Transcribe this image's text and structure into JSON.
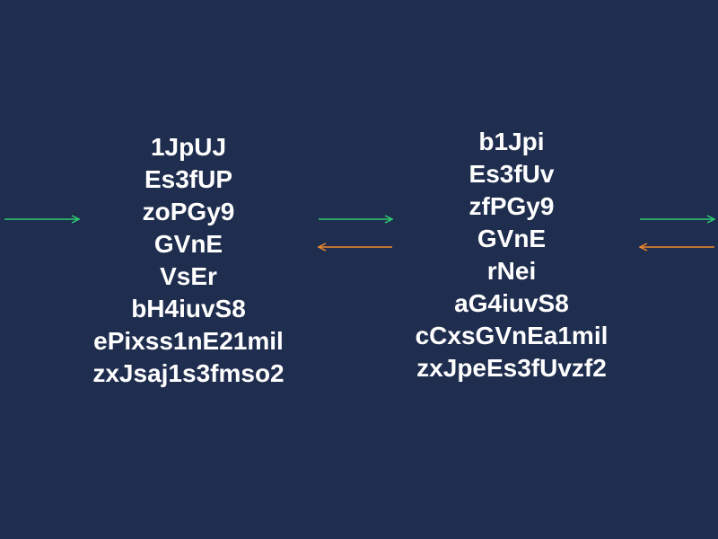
{
  "diagram": {
    "colors": {
      "background": "#1f2d4e",
      "text": "#ffffff",
      "forward_arrow": "#2ecc71",
      "backward_arrow": "#f0892b"
    },
    "left_block": {
      "lines": [
        "1JpUJ",
        "Es3fUP",
        "zoPGy9",
        "GVnE",
        "VsEr",
        "bH4iuvS8",
        "ePixss1nE21mil",
        "zxJsaj1s3fmso2"
      ]
    },
    "right_block": {
      "lines": [
        "b1Jpi",
        "Es3fUv",
        "zfPGy9",
        "GVnE",
        "rNei",
        "aG4iuvS8",
        "cCxsGVnEa1mil",
        "zxJpeEs3fUvzf2"
      ]
    },
    "arrows": [
      {
        "direction": "right",
        "color": "forward"
      },
      {
        "direction": "right",
        "color": "forward"
      },
      {
        "direction": "left",
        "color": "backward"
      },
      {
        "direction": "right",
        "color": "forward"
      },
      {
        "direction": "left",
        "color": "backward"
      }
    ]
  }
}
